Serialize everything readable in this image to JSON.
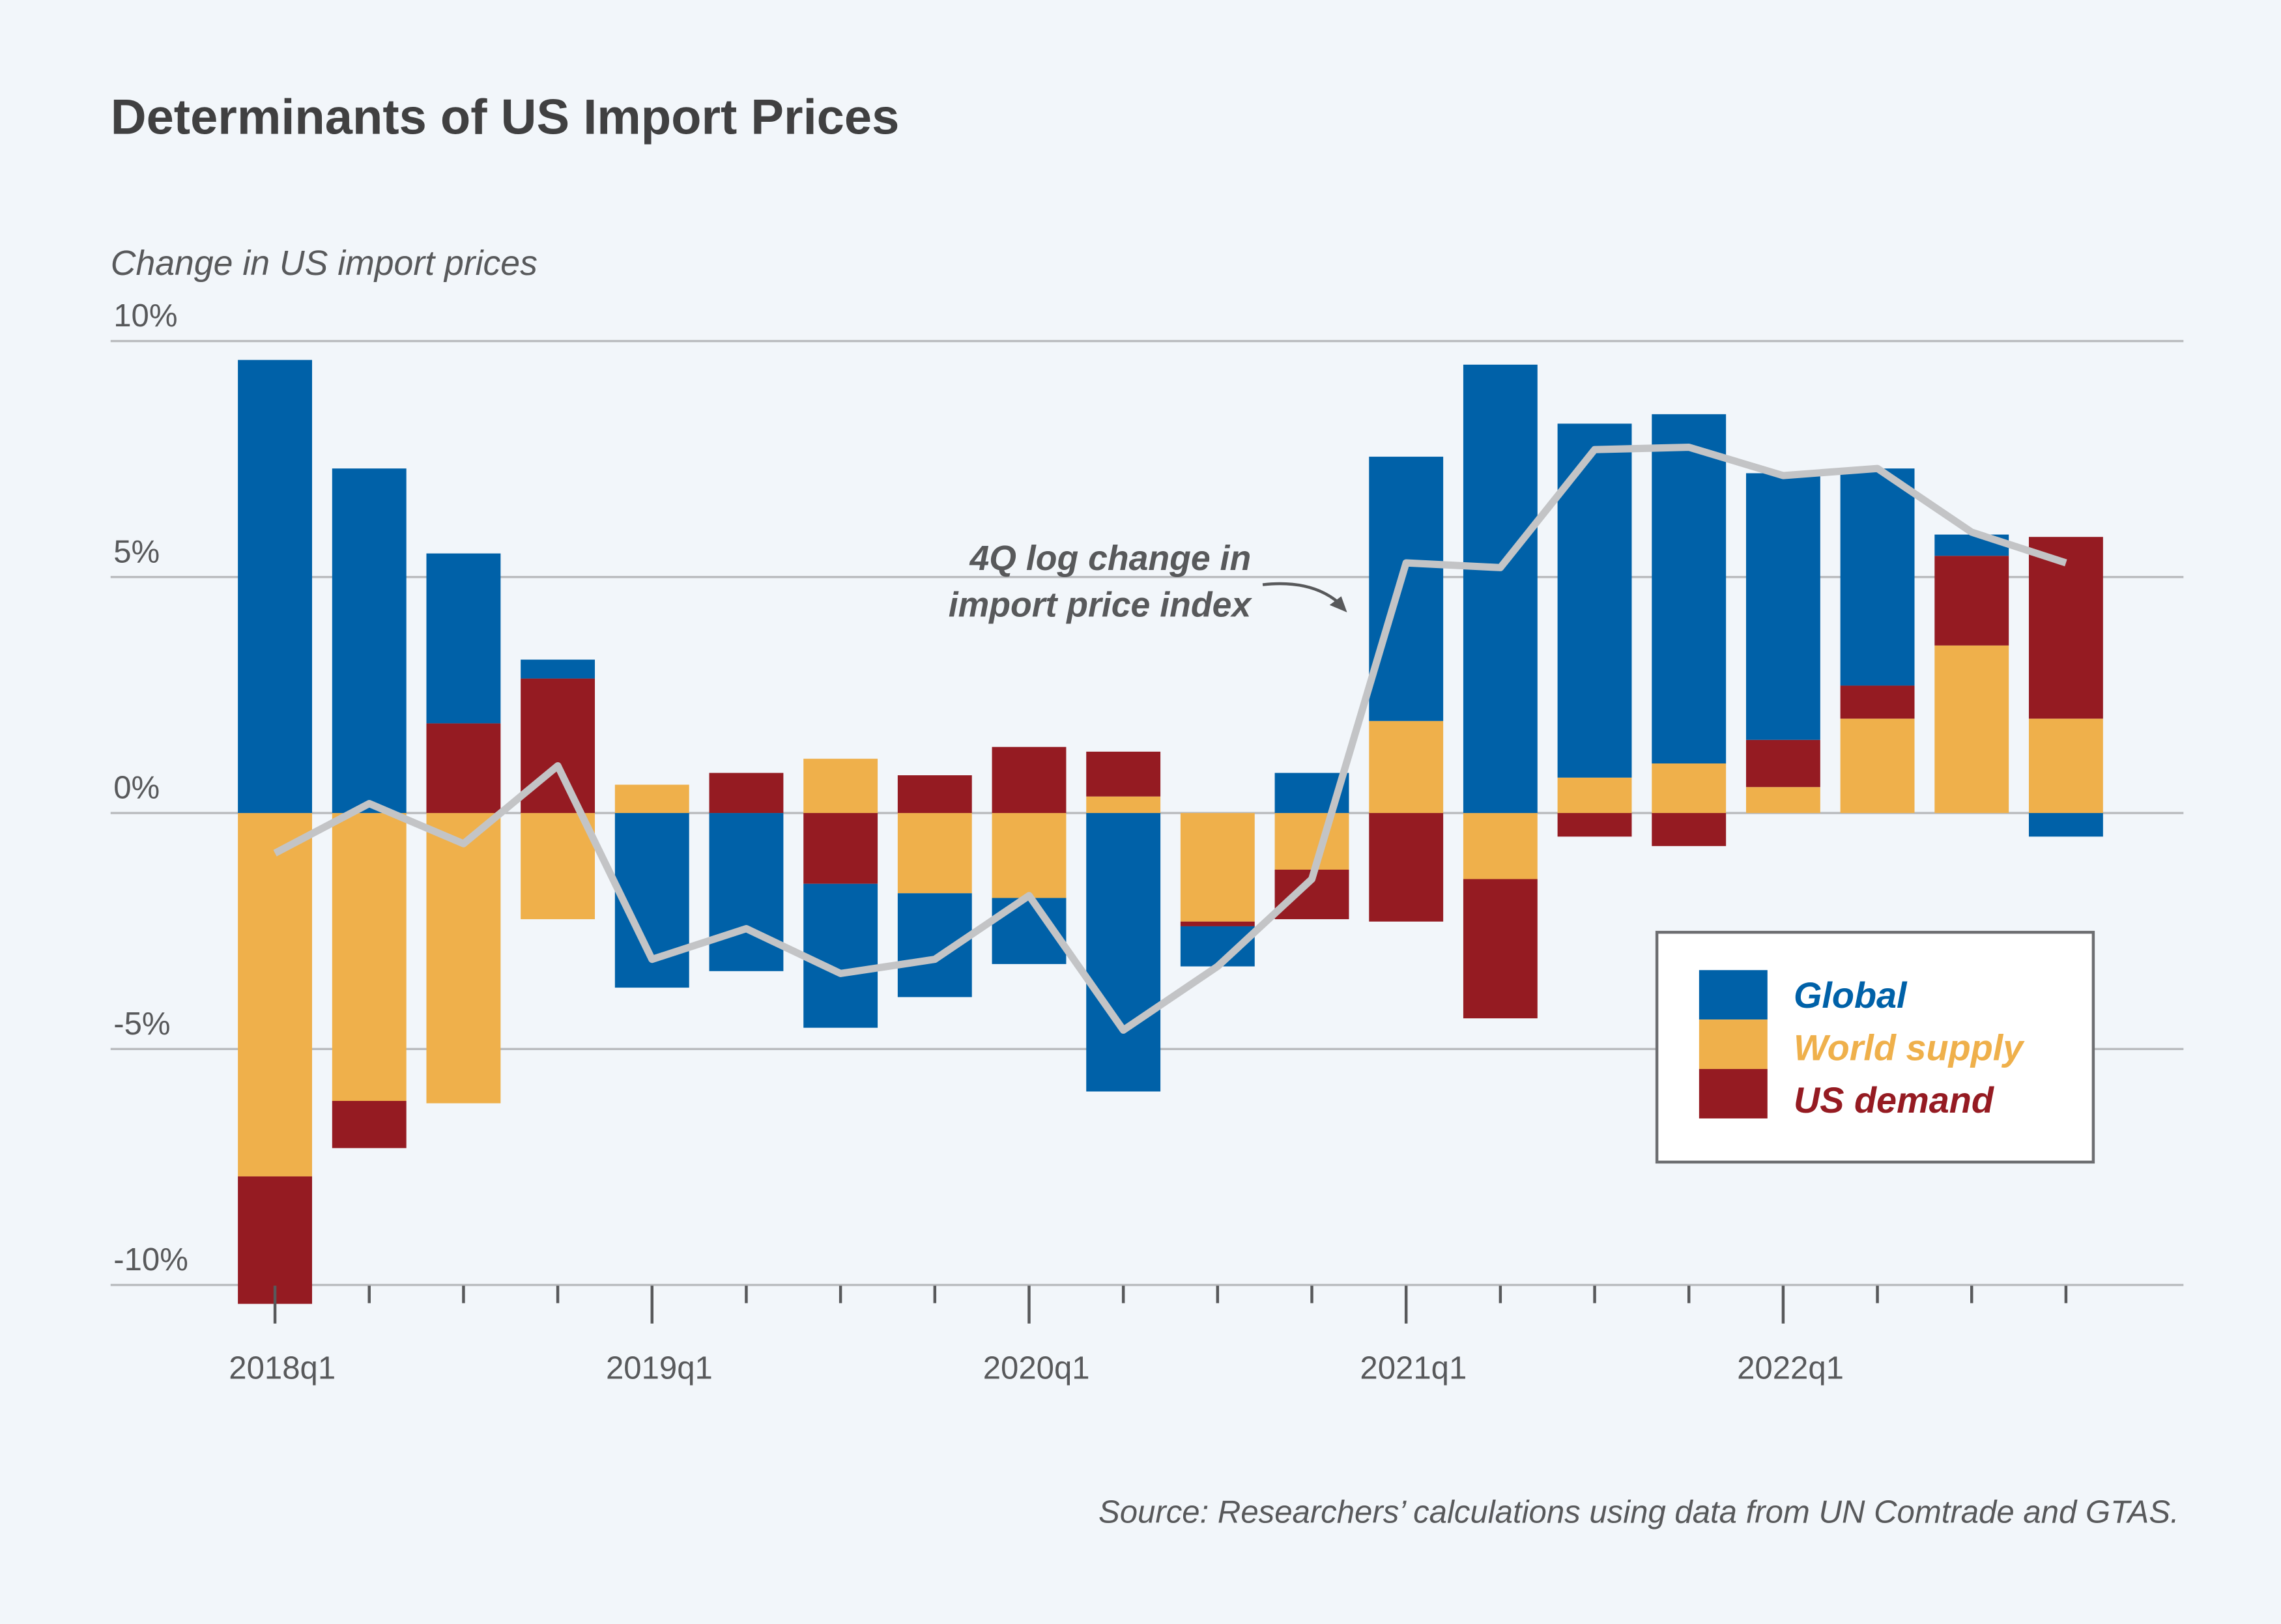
{
  "chart_data": {
    "type": "bar",
    "stacked": true,
    "title": "Determinants of US Import Prices",
    "ylabel": "Change in US import prices",
    "xlabel": "",
    "ylim": [
      -10,
      10
    ],
    "yticks": [
      10,
      5,
      0,
      -5,
      -10
    ],
    "ytick_labels": [
      "10%",
      "5%",
      "0%",
      "-5%",
      "-10%"
    ],
    "grid": "horizontal",
    "legend_placement": "bottom-right",
    "categories": [
      "2018q1",
      "2018q2",
      "2018q3",
      "2018q4",
      "2019q1",
      "2019q2",
      "2019q3",
      "2019q4",
      "2020q1",
      "2020q2",
      "2020q3",
      "2020q4",
      "2021q1",
      "2021q2",
      "2021q3",
      "2021q4",
      "2022q1",
      "2022q2",
      "2022q3",
      "2022q4"
    ],
    "xtick_labels": [
      "2018q1",
      "2019q1",
      "2020q1",
      "2021q1",
      "2022q1"
    ],
    "series": [
      {
        "name": "World supply",
        "color": "#efb04b",
        "values": [
          -7.7,
          -6.1,
          -6.15,
          -2.25,
          0.6,
          0,
          1.15,
          -1.7,
          -1.8,
          0.35,
          -2.3,
          -1.2,
          1.95,
          -1.4,
          0.75,
          1.05,
          0.55,
          2.0,
          3.55,
          2.0
        ]
      },
      {
        "name": "US demand",
        "color": "#951b22",
        "values": [
          -2.7,
          -1.0,
          1.9,
          2.85,
          0,
          0.85,
          -1.5,
          0.8,
          1.4,
          0.95,
          -0.1,
          -1.05,
          -2.3,
          -2.95,
          -0.5,
          -0.7,
          1.0,
          0.7,
          1.9,
          3.85
        ]
      },
      {
        "name": "Global",
        "color": "#0061a8",
        "values": [
          9.6,
          7.3,
          3.6,
          0.4,
          -3.7,
          -3.35,
          -3.05,
          -2.2,
          -1.4,
          -5.9,
          -0.85,
          0.85,
          5.6,
          9.5,
          7.5,
          7.4,
          5.65,
          4.6,
          0.45,
          -0.5
        ]
      }
    ],
    "line": {
      "label": "4Q log change in import price index",
      "color": "#c3c4c6",
      "values": [
        -0.85,
        0.2,
        -0.65,
        1.0,
        -3.1,
        -2.45,
        -3.4,
        -3.1,
        -1.75,
        -4.6,
        -3.25,
        -1.4,
        5.3,
        5.2,
        7.7,
        7.75,
        7.15,
        7.3,
        5.95,
        5.3
      ]
    },
    "annotation": [
      "4Q log change in",
      "import price index"
    ],
    "legend_order": [
      "Global",
      "World supply",
      "US demand"
    ],
    "source": "Source: Researchers’ calculations using data from UN Comtrade and GTAS."
  }
}
